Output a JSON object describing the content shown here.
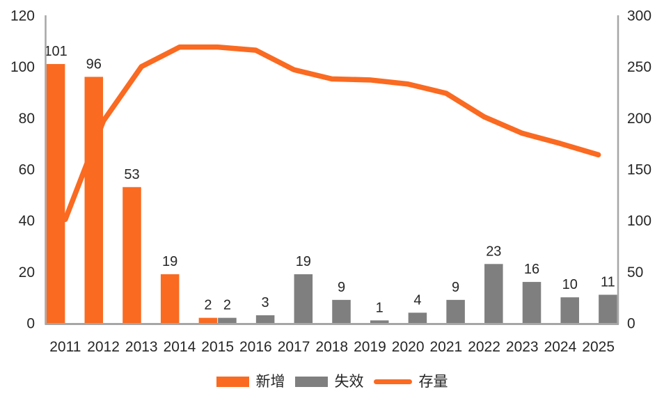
{
  "chart_data": {
    "type": "bar",
    "subtype": "grouped-bars-with-line-overlay",
    "title": "",
    "xlabel": "",
    "ylabel_left": "",
    "ylabel_right": "",
    "categories": [
      "2011",
      "2012",
      "2013",
      "2014",
      "2015",
      "2016",
      "2017",
      "2018",
      "2019",
      "2020",
      "2021",
      "2022",
      "2023",
      "2024",
      "2025"
    ],
    "series": [
      {
        "name": "新增",
        "key": "new",
        "type": "bar",
        "axis": "left",
        "color": "#FA6A21",
        "values": [
          101,
          96,
          53,
          19,
          2,
          0,
          0,
          0,
          0,
          0,
          0,
          0,
          0,
          0,
          0
        ]
      },
      {
        "name": "失效",
        "key": "expired",
        "type": "bar",
        "axis": "left",
        "color": "#7F7F7F",
        "values": [
          0,
          0,
          0,
          0,
          2,
          3,
          19,
          9,
          1,
          4,
          9,
          23,
          16,
          10,
          11
        ]
      },
      {
        "name": "存量",
        "key": "stock",
        "type": "line",
        "axis": "right",
        "color": "#FA6A21",
        "values": [
          101,
          197,
          250,
          269,
          269,
          266,
          247,
          238,
          237,
          233,
          224,
          201,
          185,
          175,
          164
        ]
      }
    ],
    "left_axis": {
      "min": 0,
      "max": 120,
      "ticks": [
        120,
        100,
        80,
        60,
        40,
        20,
        0
      ]
    },
    "right_axis": {
      "min": 0,
      "max": 300,
      "ticks": [
        300,
        250,
        200,
        150,
        100,
        50,
        0
      ]
    },
    "bar_labels_visible": true,
    "grid": false,
    "legend_position": "bottom",
    "colors": {
      "axis_line": "#A6A6A6",
      "text": "#262626",
      "background": "#FFFFFF"
    }
  }
}
